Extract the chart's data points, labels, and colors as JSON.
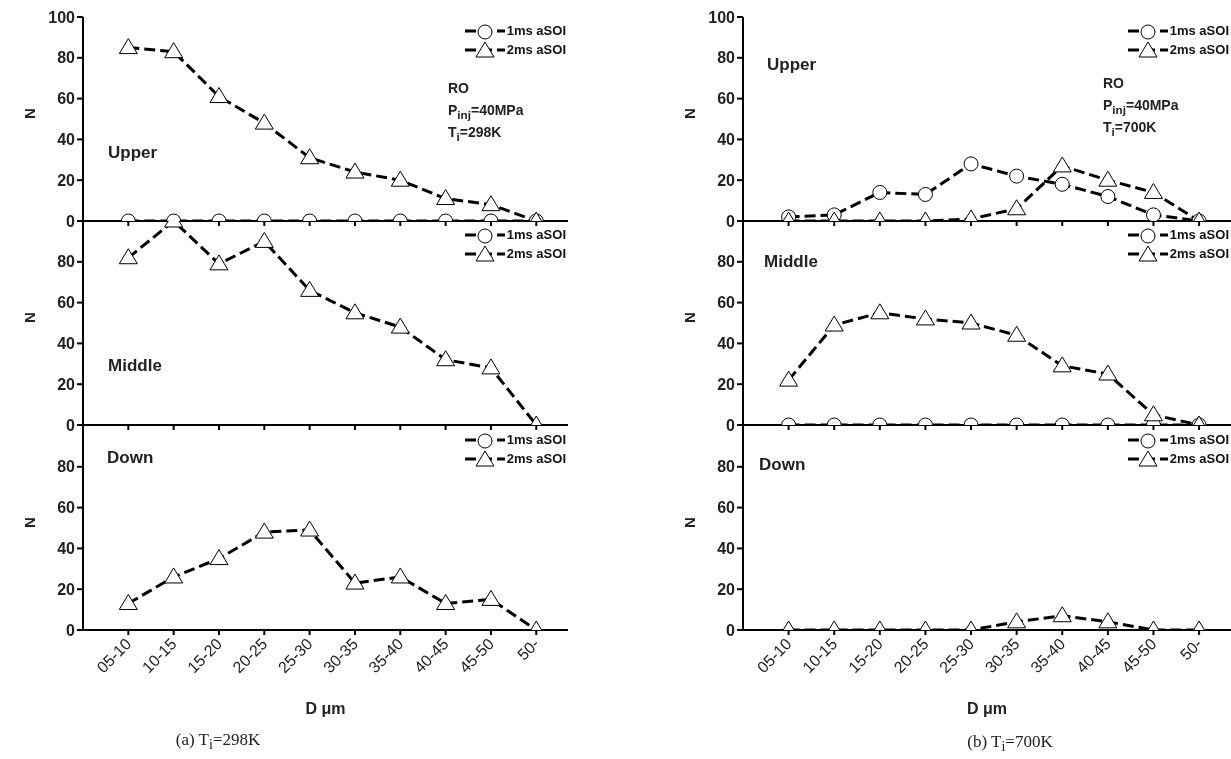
{
  "chart_data": [
    {
      "type": "line",
      "categories": [
        null,
        null,
        null,
        null,
        null,
        null,
        null,
        null,
        null,
        null
      ],
      "series": [
        {
          "name": "1ms aSOI",
          "color": "#000000",
          "marker": "circle",
          "values": [
            0,
            0,
            0,
            0,
            0,
            0,
            0,
            0,
            0,
            0
          ]
        },
        {
          "name": "2ms aSOI",
          "color": "#000000",
          "marker": "triangle",
          "values": [
            85,
            83,
            61,
            48,
            31,
            24,
            20,
            11,
            8,
            0
          ]
        }
      ],
      "ylabel": "N",
      "ylim": [
        0,
        100
      ],
      "yticks": [
        0,
        20,
        40,
        60,
        80,
        100
      ],
      "legend": "top right",
      "line_style": "dashed",
      "annotations": [
        "Upper",
        "RO",
        "P$_{inj}$=40MPa",
        "T$_{i}$=298K"
      ]
    },
    {
      "type": "line",
      "categories": [
        null,
        null,
        null,
        null,
        null,
        null,
        null,
        null,
        null,
        null
      ],
      "series": [
        {
          "name": "1ms aSOI",
          "color": "#000000",
          "marker": "circle",
          "values": [
            null,
            null,
            null,
            null,
            null,
            null,
            null,
            null,
            null,
            null
          ]
        },
        {
          "name": "2ms aSOI",
          "color": "#000000",
          "marker": "triangle",
          "values": [
            82,
            100,
            79,
            90,
            66,
            55,
            48,
            32,
            28,
            0
          ]
        }
      ],
      "ylabel": "N",
      "ylim": [
        0,
        100
      ],
      "yticks": [
        0,
        20,
        40,
        60,
        80
      ],
      "legend": "top right",
      "line_style": "dashed",
      "annotations": [
        "Middle"
      ]
    },
    {
      "type": "line",
      "categories": [
        "05-10",
        "10-15",
        "15-20",
        "20-25",
        "25-30",
        "30-35",
        "35-40",
        "40-45",
        "45-50",
        "50-"
      ],
      "series": [
        {
          "name": "1ms aSOI",
          "color": "#000000",
          "marker": "circle",
          "values": [
            null,
            null,
            null,
            null,
            null,
            null,
            null,
            null,
            null,
            null
          ]
        },
        {
          "name": "2ms aSOI",
          "color": "#000000",
          "marker": "triangle",
          "values": [
            13,
            26,
            35,
            48,
            49,
            23,
            26,
            13,
            15,
            0
          ]
        }
      ],
      "xlabel": "D μm",
      "ylabel": "N",
      "ylim": [
        0,
        100
      ],
      "yticks": [
        0,
        20,
        40,
        60,
        80
      ],
      "legend": "top right",
      "line_style": "dashed",
      "annotations": [
        "Down",
        "(a) T$_{i}$=298K"
      ]
    },
    {
      "type": "line",
      "categories": [
        null,
        null,
        null,
        null,
        null,
        null,
        null,
        null,
        null,
        null
      ],
      "series": [
        {
          "name": "1ms aSOI",
          "color": "#000000",
          "marker": "circle",
          "values": [
            2,
            3,
            14,
            13,
            28,
            22,
            18,
            12,
            3,
            0
          ]
        },
        {
          "name": "2ms aSOI",
          "color": "#000000",
          "marker": "triangle",
          "values": [
            0,
            0,
            0,
            0,
            1,
            6,
            27,
            20,
            14,
            0
          ]
        }
      ],
      "ylabel": "N",
      "ylim": [
        0,
        100
      ],
      "yticks": [
        0,
        20,
        40,
        60,
        80,
        100
      ],
      "legend": "top right",
      "line_style": "dashed",
      "annotations": [
        "Upper",
        "RO",
        "P$_{inj}$=40MPa",
        "T$_{i}$=700K"
      ]
    },
    {
      "type": "line",
      "categories": [
        null,
        null,
        null,
        null,
        null,
        null,
        null,
        null,
        null,
        null
      ],
      "series": [
        {
          "name": "1ms aSOI",
          "color": "#000000",
          "marker": "circle",
          "values": [
            0,
            0,
            0,
            0,
            0,
            0,
            0,
            0,
            0,
            0
          ]
        },
        {
          "name": "2ms aSOI",
          "color": "#000000",
          "marker": "triangle",
          "values": [
            22,
            49,
            55,
            52,
            50,
            44,
            29,
            25,
            5,
            0
          ]
        }
      ],
      "ylabel": "N",
      "ylim": [
        0,
        100
      ],
      "yticks": [
        0,
        20,
        40,
        60,
        80
      ],
      "legend": "top right",
      "line_style": "dashed",
      "annotations": [
        "Middle"
      ]
    },
    {
      "type": "line",
      "categories": [
        "05-10",
        "10-15",
        "15-20",
        "20-25",
        "25-30",
        "30-35",
        "35-40",
        "40-45",
        "45-50",
        "50-"
      ],
      "series": [
        {
          "name": "1ms aSOI",
          "color": "#000000",
          "marker": "circle",
          "values": [
            null,
            null,
            null,
            null,
            null,
            null,
            null,
            null,
            null,
            null
          ]
        },
        {
          "name": "2ms aSOI",
          "color": "#000000",
          "marker": "triangle",
          "values": [
            0,
            0,
            0,
            0,
            0,
            4,
            7,
            4,
            0,
            0
          ]
        }
      ],
      "xlabel": "D μm",
      "ylabel": "N",
      "ylim": [
        0,
        100
      ],
      "yticks": [
        0,
        20,
        40,
        60,
        80
      ],
      "legend": "top right",
      "line_style": "dashed",
      "annotations": [
        "Down",
        "(b) T$_{i}$=700K"
      ]
    }
  ]
}
